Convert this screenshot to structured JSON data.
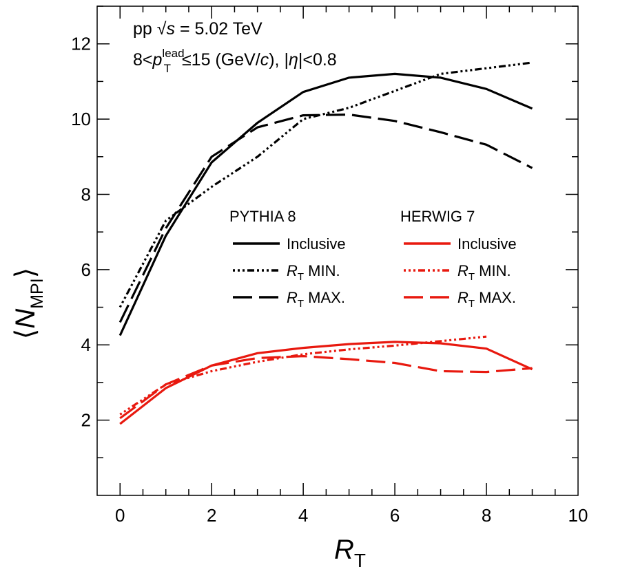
{
  "chart_data": {
    "type": "line",
    "annotations": {
      "line1": {
        "prefix": "pp ",
        "sqrt": "√",
        "var": "s",
        "rest": " = 5.02 TeV"
      },
      "line2": {
        "prefix": "8<",
        "p": "p",
        "sub": "T",
        "sup": "lead",
        "mid": "≤15 (GeV/",
        "c": "c",
        "mid2": "), |",
        "eta": "η",
        "end": "|<0.8"
      }
    },
    "xlabel": {
      "main": "R",
      "sub": "T"
    },
    "ylabel": {
      "left": "⟨",
      "main": "N",
      "sub": "MPI",
      "right": "⟩"
    },
    "xlim": [
      -0.5,
      10
    ],
    "ylim": [
      0,
      13
    ],
    "xticks": [
      0,
      2,
      4,
      6,
      8,
      10
    ],
    "yticks": [
      2,
      4,
      6,
      8,
      10,
      12
    ],
    "x": [
      0,
      1,
      2,
      3,
      4,
      5,
      6,
      7,
      8,
      9
    ],
    "colors": {
      "pythia": "#000000",
      "herwig": "#e8190f"
    },
    "legend": {
      "groups": [
        {
          "title": "PYTHIA 8",
          "color": "#000000"
        },
        {
          "title": "HERWIG 7",
          "color": "#e8190f"
        }
      ],
      "entries": [
        {
          "style": "solid",
          "label": "Inclusive",
          "italic": "",
          "sub": ""
        },
        {
          "style": "dashdot",
          "label": " MIN.",
          "italic": "R",
          "sub": "T"
        },
        {
          "style": "dashed",
          "label": " MAX.",
          "italic": "R",
          "sub": "T"
        }
      ]
    },
    "series": [
      {
        "name": "PYTHIA 8 Inclusive",
        "group": "pythia",
        "style": "solid",
        "x": [
          0,
          1,
          2,
          3,
          4,
          5,
          6,
          7,
          8,
          9
        ],
        "values": [
          4.25,
          6.9,
          8.85,
          9.9,
          10.72,
          11.1,
          11.2,
          11.1,
          10.8,
          10.28
        ]
      },
      {
        "name": "PYTHIA 8 RT MIN.",
        "group": "pythia",
        "style": "dashdot",
        "x": [
          0,
          1,
          2,
          3,
          4,
          5,
          6,
          7,
          8,
          9
        ],
        "values": [
          5.0,
          7.3,
          8.2,
          9.0,
          10.0,
          10.3,
          10.75,
          11.2,
          11.35,
          11.5
        ]
      },
      {
        "name": "PYTHIA 8 RT MAX.",
        "group": "pythia",
        "style": "dashed",
        "x": [
          0,
          1,
          2,
          3,
          4,
          5,
          6,
          7,
          8,
          9
        ],
        "values": [
          4.6,
          7.1,
          9.0,
          9.78,
          10.1,
          10.12,
          9.95,
          9.65,
          9.32,
          8.7
        ]
      },
      {
        "name": "HERWIG 7 Inclusive",
        "group": "herwig",
        "style": "solid",
        "x": [
          0,
          1,
          2,
          3,
          4,
          5,
          6,
          7,
          8,
          9
        ],
        "values": [
          1.9,
          2.85,
          3.45,
          3.78,
          3.92,
          4.02,
          4.08,
          4.04,
          3.9,
          3.35
        ]
      },
      {
        "name": "HERWIG 7 RT MIN.",
        "group": "herwig",
        "style": "dashdot",
        "x": [
          0,
          1,
          2,
          3,
          4,
          5,
          6,
          7,
          8
        ],
        "values": [
          2.15,
          2.95,
          3.3,
          3.55,
          3.75,
          3.88,
          3.98,
          4.1,
          4.22
        ]
      },
      {
        "name": "HERWIG 7 RT MAX.",
        "group": "herwig",
        "style": "dashed",
        "x": [
          0,
          1,
          2,
          3,
          4,
          5,
          6,
          7,
          8,
          9
        ],
        "values": [
          2.05,
          2.95,
          3.45,
          3.65,
          3.7,
          3.62,
          3.52,
          3.3,
          3.28,
          3.38
        ]
      }
    ]
  }
}
